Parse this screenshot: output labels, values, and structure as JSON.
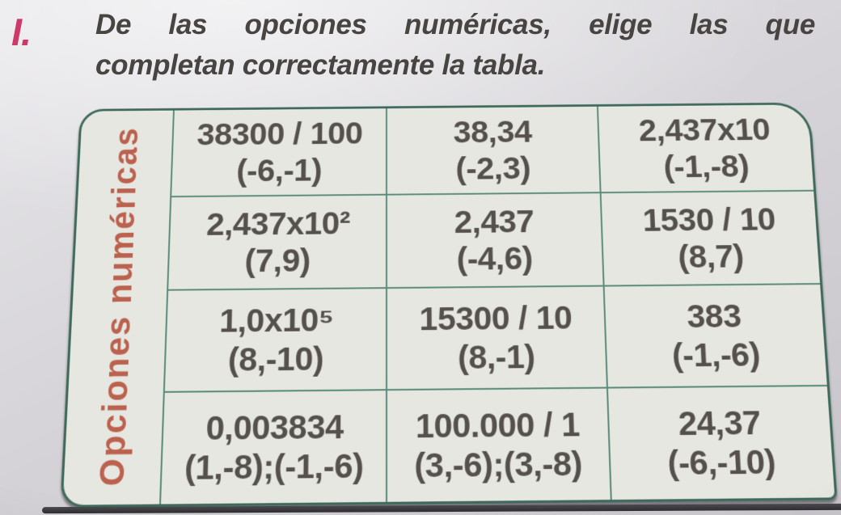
{
  "heading": {
    "marker": "I.",
    "line1": "De las opciones numéricas, elige las que",
    "line2": "completan correctamente la tabla."
  },
  "table": {
    "row_label": "Opciones numéricas",
    "rows": [
      [
        {
          "expr": "38300 / 100",
          "pair": "(-6,-1)"
        },
        {
          "expr": "38,34",
          "pair": "(-2,3)"
        },
        {
          "expr": "2,437x10",
          "pair": "(-1,-8)"
        }
      ],
      [
        {
          "expr": "2,437x10²",
          "pair": "(7,9)"
        },
        {
          "expr": "2,437",
          "pair": "(-4,6)"
        },
        {
          "expr": "1530 / 10",
          "pair": "(8,7)"
        }
      ],
      [
        {
          "expr": "1,0x10⁵",
          "pair": "(8,-10)"
        },
        {
          "expr": "15300 / 10",
          "pair": "(8,-1)"
        },
        {
          "expr": "383",
          "pair": "(-1,-6)"
        }
      ],
      [
        {
          "expr": "0,003834",
          "pair": "(1,-8);(-1,-6)"
        },
        {
          "expr": "100.000 / 1",
          "pair": "(3,-6);(3,-8)"
        },
        {
          "expr": "24,37",
          "pair": "(-6,-10)"
        }
      ]
    ]
  },
  "colors": {
    "exercise_marker": "#cd3a69",
    "table_border": "#5a8b7b",
    "row_label_text": "#bb614e",
    "cell_background": "#e5e7e0",
    "body_text": "#55504c"
  }
}
